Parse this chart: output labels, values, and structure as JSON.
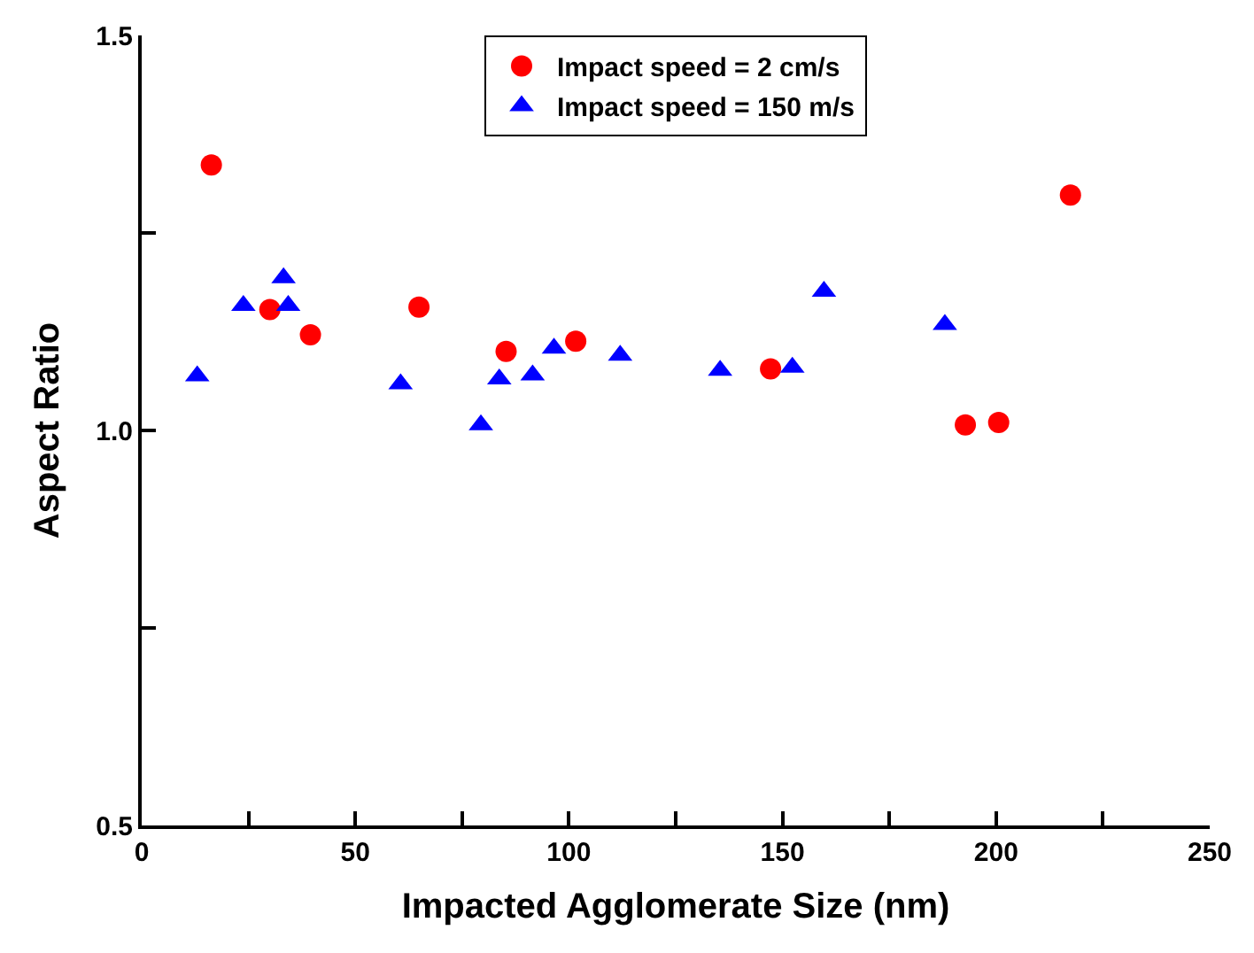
{
  "chart_data": {
    "type": "scatter",
    "xlabel": "Impacted Agglomerate Size (nm)",
    "ylabel": "Aspect Ratio",
    "xlim": [
      0,
      250
    ],
    "xticks": [
      0,
      {
        "value": 25,
        "label": null
      },
      50,
      {
        "value": 75,
        "label": null
      },
      100,
      {
        "value": 125,
        "label": null
      },
      150,
      {
        "value": 175,
        "label": null
      },
      200,
      {
        "value": 225,
        "label": null
      },
      250
    ],
    "ylim": [
      0.5,
      1.5
    ],
    "yticks": [
      0.5,
      {
        "value": 0.75,
        "label": null
      },
      {
        "value": 1.0,
        "label": "1.0"
      },
      {
        "value": 1.25,
        "label": null
      },
      1.5
    ],
    "legend": "top",
    "series": [
      {
        "name": "Impact speed = 2 cm/s",
        "color": "#ff0000",
        "marker": "circle",
        "x": [
          16.3,
          30.0,
          39.5,
          64.9,
          85.3,
          101.6,
          147.2,
          192.8,
          200.6,
          217.4
        ],
        "values": [
          1.336,
          1.153,
          1.121,
          1.156,
          1.1,
          1.113,
          1.078,
          1.007,
          1.01,
          1.298
        ]
      },
      {
        "name": "Impact speed = 150 m/s",
        "color": "#0000ff",
        "marker": "triangle",
        "x": [
          13.0,
          23.8,
          33.2,
          34.3,
          60.6,
          79.4,
          83.7,
          91.5,
          96.5,
          112.0,
          135.4,
          152.3,
          159.7,
          188.0
        ],
        "values": [
          1.069,
          1.158,
          1.193,
          1.158,
          1.059,
          1.007,
          1.065,
          1.07,
          1.104,
          1.095,
          1.076,
          1.08,
          1.176,
          1.134
        ]
      }
    ]
  }
}
